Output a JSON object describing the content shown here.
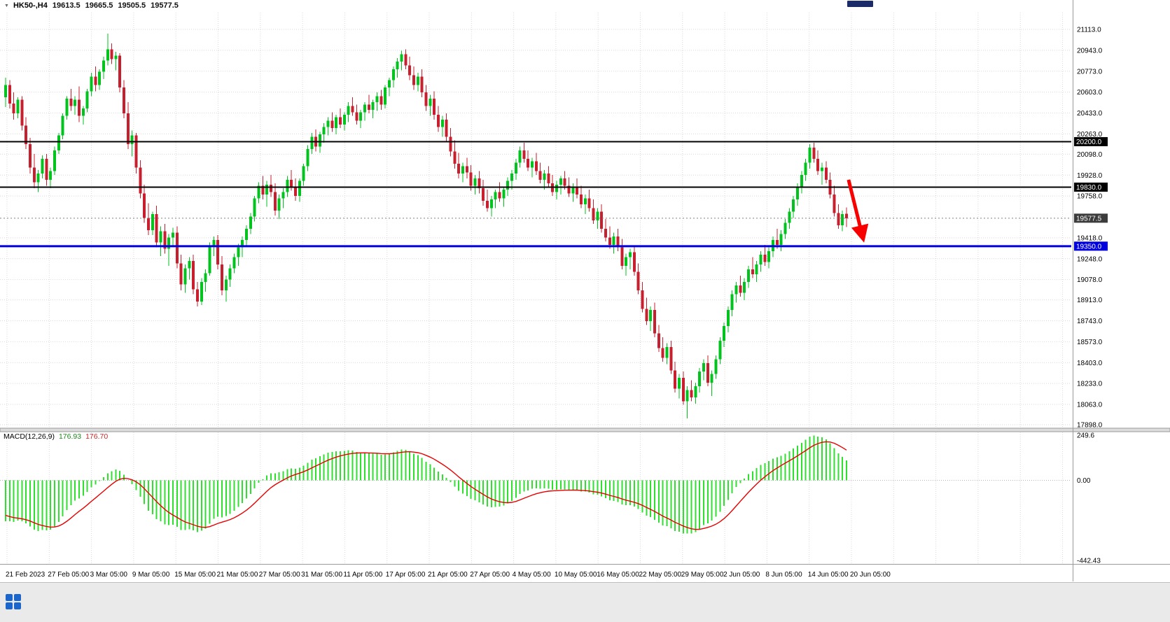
{
  "quote_bar": {
    "symbol": "HK50-,H4",
    "open": "19613.5",
    "high": "19665.5",
    "low": "19505.5",
    "close": "19577.5"
  },
  "colors": {
    "bull": "#00c41d",
    "bear": "#c81f2e",
    "macd_hist": "#2fe02f",
    "macd_signal": "#e80000",
    "hline_black": "#000000",
    "hline_blue": "#0000dd",
    "arrow": "#f80000",
    "current_tag_bg": "#3c3c3c"
  },
  "price_axis": {
    "ticks": [
      {
        "label": "21113.0",
        "value": 21113
      },
      {
        "label": "20943.0",
        "value": 20943
      },
      {
        "label": "20773.0",
        "value": 20773
      },
      {
        "label": "20603.0",
        "value": 20603
      },
      {
        "label": "20433.0",
        "value": 20433
      },
      {
        "label": "20263.0",
        "value": 20263
      },
      {
        "label": "20098.0",
        "value": 20098
      },
      {
        "label": "19928.0",
        "value": 19928
      },
      {
        "label": "19758.0",
        "value": 19758
      },
      {
        "label": "19418.0",
        "value": 19418
      },
      {
        "label": "19248.0",
        "value": 19248
      },
      {
        "label": "19078.0",
        "value": 19078
      },
      {
        "label": "18913.0",
        "value": 18913
      },
      {
        "label": "18743.0",
        "value": 18743
      },
      {
        "label": "18573.0",
        "value": 18573
      },
      {
        "label": "18403.0",
        "value": 18403
      },
      {
        "label": "18233.0",
        "value": 18233
      },
      {
        "label": "18063.0",
        "value": 18063
      },
      {
        "label": "17898.0",
        "value": 17898
      }
    ]
  },
  "time_axis": {
    "labels": [
      "21 Feb 2023",
      "27 Feb 05:00",
      "3 Mar 05:00",
      "9 Mar 05:00",
      "15 Mar 05:00",
      "21 Mar 05:00",
      "27 Mar 05:00",
      "31 Mar 05:00",
      "11 Apr 05:00",
      "17 Apr 05:00",
      "21 Apr 05:00",
      "27 Apr 05:00",
      "4 May 05:00",
      "10 May 05:00",
      "16 May 05:00",
      "22 May 05:00",
      "29 May 05:00",
      "2 Jun 05:00",
      "8 Jun 05:00",
      "14 Jun 05:00",
      "20 Jun 05:00"
    ]
  },
  "macd_panel": {
    "label": "MACD(12,26,9)",
    "value_main": "176.93",
    "value_signal": "176.70",
    "axis_ticks": [
      {
        "label": "249.6",
        "value": 249.6
      },
      {
        "label": "0.00",
        "value": 0
      },
      {
        "label": "-442.43",
        "value": -442.43
      }
    ]
  },
  "annotations": {
    "hlines": [
      {
        "price": 20200,
        "label": "20200.0",
        "color": "#000000",
        "width": 2
      },
      {
        "price": 19830,
        "label": "19830.0",
        "color": "#000000",
        "width": 2
      },
      {
        "price": 19350,
        "label": "19350.0",
        "color": "#0000dd",
        "width": 3
      }
    ],
    "current_price": {
      "price": 19577.5,
      "label": "19577.5",
      "bg": "#3c3c3c"
    },
    "arrow": {
      "from_candle": 206.5,
      "from_price": 19890,
      "to_candle": 210,
      "to_price": 19420,
      "color": "#f80000"
    }
  },
  "chart_data": {
    "type": "candlestick",
    "symbol": "HK50",
    "timeframe": "H4",
    "title": "HK50-,H4",
    "x_range": [
      "21 Feb 2023",
      "20 Jun 2023"
    ],
    "y_axis_range": [
      17898,
      21113
    ],
    "last_quote": {
      "open": 19613.5,
      "high": 19665.5,
      "low": 19505.5,
      "close": 19577.5
    },
    "levels": [
      20200.0,
      19830.0,
      19350.0
    ],
    "indicator": {
      "name": "MACD",
      "fast": 12,
      "slow": 26,
      "signal": 9,
      "current_macd": 176.93,
      "current_signal": 176.7,
      "display_range": [
        -442.43,
        249.6
      ]
    },
    "ohlc": [
      [
        20560,
        20720,
        20480,
        20660
      ],
      [
        20660,
        20700,
        20470,
        20510
      ],
      [
        20510,
        20600,
        20380,
        20430
      ],
      [
        20430,
        20560,
        20390,
        20540
      ],
      [
        20540,
        20570,
        20290,
        20330
      ],
      [
        20330,
        20400,
        20140,
        20180
      ],
      [
        20180,
        20230,
        19940,
        19990
      ],
      [
        19990,
        20100,
        19820,
        19870
      ],
      [
        19870,
        19970,
        19790,
        19940
      ],
      [
        19940,
        20090,
        19900,
        20060
      ],
      [
        20060,
        20100,
        19840,
        19890
      ],
      [
        19890,
        19990,
        19820,
        19960
      ],
      [
        19960,
        20160,
        19930,
        20130
      ],
      [
        20130,
        20270,
        20100,
        20250
      ],
      [
        20250,
        20430,
        20220,
        20410
      ],
      [
        20410,
        20570,
        20380,
        20550
      ],
      [
        20550,
        20630,
        20450,
        20490
      ],
      [
        20490,
        20570,
        20420,
        20540
      ],
      [
        20540,
        20650,
        20360,
        20410
      ],
      [
        20410,
        20490,
        20340,
        20470
      ],
      [
        20470,
        20630,
        20440,
        20610
      ],
      [
        20610,
        20760,
        20570,
        20730
      ],
      [
        20730,
        20810,
        20610,
        20660
      ],
      [
        20660,
        20790,
        20620,
        20770
      ],
      [
        20770,
        20890,
        20710,
        20860
      ],
      [
        20860,
        21080,
        20820,
        20950
      ],
      [
        20950,
        21000,
        20830,
        20870
      ],
      [
        20870,
        20930,
        20780,
        20900
      ],
      [
        20900,
        20920,
        20600,
        20640
      ],
      [
        20640,
        20700,
        20390,
        20430
      ],
      [
        20430,
        20520,
        20140,
        20180
      ],
      [
        20180,
        20290,
        20080,
        20250
      ],
      [
        20250,
        20270,
        19940,
        19990
      ],
      [
        19990,
        20050,
        19740,
        19780
      ],
      [
        19780,
        19850,
        19540,
        19580
      ],
      [
        19580,
        19700,
        19440,
        19480
      ],
      [
        19480,
        19630,
        19440,
        19610
      ],
      [
        19610,
        19680,
        19340,
        19380
      ],
      [
        19380,
        19510,
        19270,
        19470
      ],
      [
        19470,
        19530,
        19290,
        19330
      ],
      [
        19330,
        19450,
        19190,
        19420
      ],
      [
        19420,
        19500,
        19340,
        19460
      ],
      [
        19460,
        19510,
        19170,
        19210
      ],
      [
        19210,
        19280,
        18990,
        19040
      ],
      [
        19040,
        19200,
        18970,
        19170
      ],
      [
        19170,
        19260,
        19080,
        19230
      ],
      [
        19230,
        19280,
        18960,
        19000
      ],
      [
        19000,
        19060,
        18860,
        18900
      ],
      [
        18900,
        19090,
        18870,
        19060
      ],
      [
        19060,
        19160,
        18980,
        19130
      ],
      [
        19130,
        19380,
        19110,
        19350
      ],
      [
        19350,
        19430,
        19270,
        19400
      ],
      [
        19400,
        19440,
        19160,
        19200
      ],
      [
        19200,
        19270,
        18950,
        18990
      ],
      [
        18990,
        19110,
        18900,
        19080
      ],
      [
        19080,
        19200,
        19020,
        19170
      ],
      [
        19170,
        19290,
        19130,
        19260
      ],
      [
        19260,
        19370,
        19190,
        19340
      ],
      [
        19340,
        19430,
        19260,
        19400
      ],
      [
        19400,
        19520,
        19340,
        19490
      ],
      [
        19490,
        19620,
        19450,
        19590
      ],
      [
        19590,
        19760,
        19550,
        19740
      ],
      [
        19740,
        19870,
        19700,
        19840
      ],
      [
        19840,
        19920,
        19730,
        19770
      ],
      [
        19770,
        19880,
        19670,
        19850
      ],
      [
        19850,
        19930,
        19750,
        19790
      ],
      [
        19790,
        19860,
        19600,
        19640
      ],
      [
        19640,
        19770,
        19570,
        19740
      ],
      [
        19740,
        19820,
        19660,
        19790
      ],
      [
        19790,
        19920,
        19750,
        19890
      ],
      [
        19890,
        19970,
        19800,
        19830
      ],
      [
        19830,
        19900,
        19720,
        19760
      ],
      [
        19760,
        19900,
        19710,
        19880
      ],
      [
        19880,
        20020,
        19840,
        20000
      ],
      [
        20000,
        20170,
        19960,
        20140
      ],
      [
        20140,
        20270,
        20100,
        20240
      ],
      [
        20240,
        20300,
        20120,
        20160
      ],
      [
        20160,
        20280,
        20110,
        20260
      ],
      [
        20260,
        20350,
        20190,
        20320
      ],
      [
        20320,
        20400,
        20250,
        20370
      ],
      [
        20370,
        20440,
        20280,
        20310
      ],
      [
        20310,
        20420,
        20260,
        20400
      ],
      [
        20400,
        20470,
        20310,
        20340
      ],
      [
        20340,
        20440,
        20290,
        20420
      ],
      [
        20420,
        20520,
        20360,
        20490
      ],
      [
        20490,
        20560,
        20410,
        20440
      ],
      [
        20440,
        20500,
        20340,
        20370
      ],
      [
        20370,
        20460,
        20310,
        20440
      ],
      [
        20440,
        20520,
        20370,
        20500
      ],
      [
        20500,
        20580,
        20430,
        20460
      ],
      [
        20460,
        20540,
        20390,
        20520
      ],
      [
        20520,
        20600,
        20450,
        20570
      ],
      [
        20570,
        20620,
        20460,
        20500
      ],
      [
        20500,
        20660,
        20470,
        20640
      ],
      [
        20640,
        20720,
        20570,
        20700
      ],
      [
        20700,
        20810,
        20640,
        20790
      ],
      [
        20790,
        20880,
        20720,
        20850
      ],
      [
        20850,
        20940,
        20780,
        20910
      ],
      [
        20910,
        20950,
        20790,
        20820
      ],
      [
        20820,
        20890,
        20700,
        20740
      ],
      [
        20740,
        20810,
        20620,
        20660
      ],
      [
        20660,
        20760,
        20610,
        20730
      ],
      [
        20730,
        20790,
        20560,
        20600
      ],
      [
        20600,
        20660,
        20450,
        20490
      ],
      [
        20490,
        20580,
        20410,
        20550
      ],
      [
        20550,
        20610,
        20380,
        20420
      ],
      [
        20420,
        20490,
        20280,
        20320
      ],
      [
        20320,
        20410,
        20240,
        20380
      ],
      [
        20380,
        20430,
        20200,
        20240
      ],
      [
        20240,
        20310,
        20080,
        20120
      ],
      [
        20120,
        20210,
        19980,
        20020
      ],
      [
        20020,
        20110,
        19900,
        19940
      ],
      [
        19940,
        20030,
        19870,
        20000
      ],
      [
        20000,
        20070,
        19900,
        19950
      ],
      [
        19950,
        20010,
        19800,
        19840
      ],
      [
        19840,
        19930,
        19770,
        19900
      ],
      [
        19900,
        19960,
        19780,
        19820
      ],
      [
        19820,
        19890,
        19680,
        19720
      ],
      [
        19720,
        19810,
        19630,
        19660
      ],
      [
        19660,
        19760,
        19590,
        19730
      ],
      [
        19730,
        19810,
        19660,
        19790
      ],
      [
        19790,
        19870,
        19710,
        19740
      ],
      [
        19740,
        19830,
        19670,
        19810
      ],
      [
        19810,
        19910,
        19760,
        19880
      ],
      [
        19880,
        19970,
        19810,
        19940
      ],
      [
        19940,
        20060,
        19890,
        20030
      ],
      [
        20030,
        20160,
        19990,
        20130
      ],
      [
        20130,
        20190,
        20030,
        20060
      ],
      [
        20060,
        20130,
        19960,
        19990
      ],
      [
        19990,
        20070,
        19910,
        20040
      ],
      [
        20040,
        20110,
        19930,
        19960
      ],
      [
        19960,
        20030,
        19860,
        19890
      ],
      [
        19890,
        19970,
        19810,
        19940
      ],
      [
        19940,
        20000,
        19830,
        19860
      ],
      [
        19860,
        19930,
        19760,
        19790
      ],
      [
        19790,
        19880,
        19730,
        19850
      ],
      [
        19850,
        19920,
        19770,
        19900
      ],
      [
        19900,
        19960,
        19810,
        19840
      ],
      [
        19840,
        19910,
        19750,
        19780
      ],
      [
        19780,
        19860,
        19710,
        19830
      ],
      [
        19830,
        19900,
        19740,
        19770
      ],
      [
        19770,
        19840,
        19660,
        19690
      ],
      [
        19690,
        19770,
        19610,
        19740
      ],
      [
        19740,
        19810,
        19630,
        19660
      ],
      [
        19660,
        19730,
        19530,
        19560
      ],
      [
        19560,
        19660,
        19490,
        19630
      ],
      [
        19630,
        19690,
        19460,
        19490
      ],
      [
        19490,
        19570,
        19390,
        19420
      ],
      [
        19420,
        19510,
        19330,
        19360
      ],
      [
        19360,
        19460,
        19290,
        19430
      ],
      [
        19430,
        19490,
        19310,
        19340
      ],
      [
        19340,
        19410,
        19160,
        19190
      ],
      [
        19190,
        19290,
        19110,
        19260
      ],
      [
        19260,
        19330,
        19160,
        19300
      ],
      [
        19300,
        19350,
        19110,
        19140
      ],
      [
        19140,
        19210,
        18960,
        18990
      ],
      [
        18990,
        19060,
        18810,
        18840
      ],
      [
        18840,
        18930,
        18710,
        18740
      ],
      [
        18740,
        18860,
        18660,
        18830
      ],
      [
        18830,
        18890,
        18610,
        18640
      ],
      [
        18640,
        18710,
        18490,
        18520
      ],
      [
        18520,
        18610,
        18410,
        18440
      ],
      [
        18440,
        18560,
        18390,
        18530
      ],
      [
        18530,
        18580,
        18310,
        18340
      ],
      [
        18340,
        18410,
        18160,
        18190
      ],
      [
        18190,
        18310,
        18110,
        18280
      ],
      [
        18280,
        18330,
        18060,
        18090
      ],
      [
        18090,
        18210,
        17950,
        18180
      ],
      [
        18180,
        18260,
        18090,
        18120
      ],
      [
        18120,
        18240,
        18070,
        18210
      ],
      [
        18210,
        18360,
        18160,
        18330
      ],
      [
        18330,
        18430,
        18260,
        18400
      ],
      [
        18400,
        18460,
        18210,
        18240
      ],
      [
        18240,
        18340,
        18130,
        18310
      ],
      [
        18310,
        18460,
        18270,
        18430
      ],
      [
        18430,
        18610,
        18390,
        18580
      ],
      [
        18580,
        18730,
        18530,
        18700
      ],
      [
        18700,
        18860,
        18650,
        18830
      ],
      [
        18830,
        18990,
        18780,
        18960
      ],
      [
        18960,
        19060,
        18890,
        19030
      ],
      [
        19030,
        19110,
        18940,
        18970
      ],
      [
        18970,
        19090,
        18910,
        19060
      ],
      [
        19060,
        19190,
        19010,
        19160
      ],
      [
        19160,
        19260,
        19090,
        19120
      ],
      [
        19120,
        19230,
        19060,
        19200
      ],
      [
        19200,
        19310,
        19140,
        19280
      ],
      [
        19280,
        19360,
        19190,
        19220
      ],
      [
        19220,
        19340,
        19170,
        19310
      ],
      [
        19310,
        19430,
        19260,
        19400
      ],
      [
        19400,
        19490,
        19330,
        19360
      ],
      [
        19360,
        19480,
        19310,
        19450
      ],
      [
        19450,
        19570,
        19410,
        19540
      ],
      [
        19540,
        19660,
        19490,
        19630
      ],
      [
        19630,
        19760,
        19580,
        19730
      ],
      [
        19730,
        19860,
        19680,
        19830
      ],
      [
        19830,
        19960,
        19780,
        19930
      ],
      [
        19930,
        20060,
        19880,
        20030
      ],
      [
        20030,
        20180,
        19980,
        20150
      ],
      [
        20150,
        20190,
        20030,
        20060
      ],
      [
        20060,
        20130,
        19930,
        19960
      ],
      [
        19960,
        20030,
        19850,
        19990
      ],
      [
        19990,
        20040,
        19860,
        19890
      ],
      [
        19890,
        19950,
        19740,
        19770
      ],
      [
        19770,
        19840,
        19590,
        19620
      ],
      [
        19620,
        19690,
        19490,
        19520
      ],
      [
        19520,
        19640,
        19470,
        19610
      ],
      [
        19613.5,
        19665.5,
        19505.5,
        19577.5
      ]
    ]
  }
}
